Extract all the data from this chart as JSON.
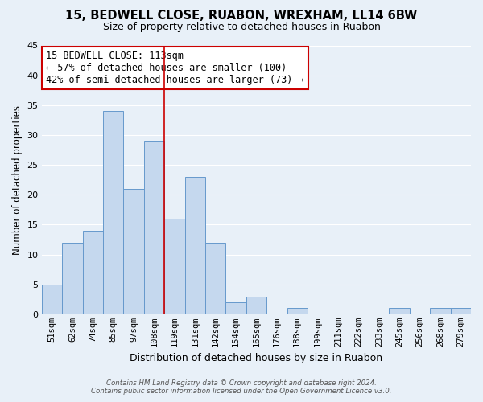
{
  "title": "15, BEDWELL CLOSE, RUABON, WREXHAM, LL14 6BW",
  "subtitle": "Size of property relative to detached houses in Ruabon",
  "xlabel": "Distribution of detached houses by size in Ruabon",
  "ylabel": "Number of detached properties",
  "bar_labels": [
    "51sqm",
    "62sqm",
    "74sqm",
    "85sqm",
    "97sqm",
    "108sqm",
    "119sqm",
    "131sqm",
    "142sqm",
    "154sqm",
    "165sqm",
    "176sqm",
    "188sqm",
    "199sqm",
    "211sqm",
    "222sqm",
    "233sqm",
    "245sqm",
    "256sqm",
    "268sqm",
    "279sqm"
  ],
  "bar_values": [
    5,
    12,
    14,
    34,
    21,
    29,
    16,
    23,
    12,
    2,
    3,
    0,
    1,
    0,
    0,
    0,
    0,
    1,
    0,
    1,
    1
  ],
  "bar_color": "#c5d8ee",
  "bar_edge_color": "#6699cc",
  "vline_x": 5.5,
  "vline_color": "#cc0000",
  "annotation_title": "15 BEDWELL CLOSE: 113sqm",
  "annotation_line1": "← 57% of detached houses are smaller (100)",
  "annotation_line2": "42% of semi-detached houses are larger (73) →",
  "box_color": "#ffffff",
  "box_edge_color": "#cc0000",
  "ylim": [
    0,
    45
  ],
  "yticks": [
    0,
    5,
    10,
    15,
    20,
    25,
    30,
    35,
    40,
    45
  ],
  "background_color": "#e8f0f8",
  "grid_color": "#ffffff",
  "footer_line1": "Contains HM Land Registry data © Crown copyright and database right 2024.",
  "footer_line2": "Contains public sector information licensed under the Open Government Licence v3.0."
}
